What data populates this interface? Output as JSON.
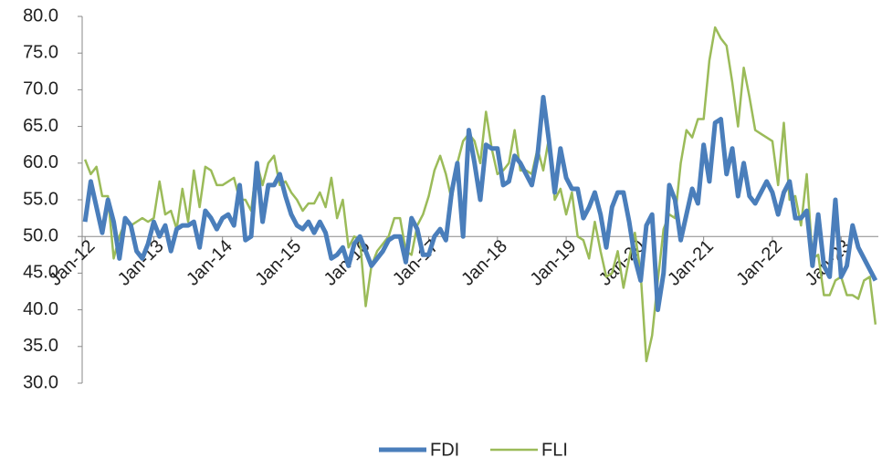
{
  "chart_data": {
    "type": "line",
    "categories": [
      "Jan-12",
      null,
      null,
      null,
      null,
      null,
      null,
      null,
      null,
      null,
      null,
      null,
      "Jan-13",
      null,
      null,
      null,
      null,
      null,
      null,
      null,
      null,
      null,
      null,
      null,
      "Jan-14",
      null,
      null,
      null,
      null,
      null,
      null,
      null,
      null,
      null,
      null,
      null,
      "Jan-15",
      null,
      null,
      null,
      null,
      null,
      null,
      null,
      null,
      null,
      null,
      null,
      "Jan-16",
      null,
      null,
      null,
      null,
      null,
      null,
      null,
      null,
      null,
      null,
      null,
      "Jan-17",
      null,
      null,
      null,
      null,
      null,
      null,
      null,
      null,
      null,
      null,
      null,
      "Jan-18",
      null,
      null,
      null,
      null,
      null,
      null,
      null,
      null,
      null,
      null,
      null,
      "Jan-19",
      null,
      null,
      null,
      null,
      null,
      null,
      null,
      null,
      null,
      null,
      null,
      "Jan-20",
      null,
      null,
      null,
      null,
      null,
      null,
      null,
      null,
      null,
      null,
      null,
      "Jan-21",
      null,
      null,
      null,
      null,
      null,
      null,
      null,
      null,
      null,
      null,
      null,
      "Jan-22",
      null,
      null,
      null,
      null,
      null,
      null,
      null,
      null,
      null,
      null,
      null,
      "Jan-23",
      null,
      null,
      null,
      null,
      null,
      null
    ],
    "series": [
      {
        "name": "FDI",
        "color": "#4a7ebb",
        "values": [
          52,
          57.5,
          54,
          50.5,
          55,
          52,
          47,
          52.5,
          51.5,
          48,
          47,
          49,
          52,
          50,
          51.5,
          48,
          51,
          51.5,
          51.5,
          52,
          48.5,
          53.5,
          52.5,
          51,
          52.5,
          53,
          51.5,
          57,
          49.5,
          50,
          60,
          52,
          57,
          57,
          58.5,
          55.5,
          53,
          51.5,
          51,
          52,
          50.5,
          52,
          50.5,
          47,
          47.5,
          48.5,
          46,
          49,
          50,
          48,
          46,
          47,
          48,
          49.5,
          50,
          50,
          46.5,
          52.5,
          51,
          47.5,
          47.5,
          50,
          51,
          49.5,
          56,
          60,
          50,
          64.5,
          60,
          55,
          62.5,
          62,
          62,
          57,
          57.5,
          61,
          60,
          58.5,
          57,
          61,
          69,
          63,
          56,
          62,
          58,
          56.5,
          56.5,
          52.5,
          54,
          56,
          53,
          48.5,
          54,
          56,
          56,
          52,
          47,
          44,
          51.5,
          53,
          40,
          45,
          57,
          55,
          49.5,
          53,
          56.5,
          54.5,
          62.5,
          57.5,
          65.5,
          66,
          58.5,
          62,
          55.5,
          60,
          55.5,
          54.5,
          56,
          57.5,
          56,
          53,
          56,
          57.5,
          52.5,
          52.5,
          53.5,
          46,
          53,
          46,
          44.5,
          55,
          44.5,
          46,
          51.5,
          48.5,
          47,
          45.5,
          44
        ]
      },
      {
        "name": "FLI",
        "color": "#9bbb59",
        "values": [
          60.5,
          58.5,
          59.5,
          55.5,
          55.5,
          47,
          50,
          52,
          51.5,
          52,
          52.5,
          52,
          52.5,
          57.5,
          53,
          53.5,
          51,
          56.5,
          52,
          59,
          54,
          59.5,
          59,
          57,
          57,
          57.5,
          58,
          55,
          55,
          53.5,
          60,
          57,
          60,
          61,
          57,
          57.5,
          56,
          55,
          53.5,
          54.5,
          54.5,
          56,
          54,
          58,
          52.5,
          55,
          48.5,
          50,
          49.5,
          40.5,
          46,
          48,
          49,
          50,
          52.5,
          52.5,
          48,
          47.5,
          51.5,
          53,
          55.5,
          59,
          61,
          58.5,
          55,
          60,
          63,
          64,
          63,
          60,
          67,
          62,
          58.5,
          59,
          60,
          64.5,
          59,
          59,
          58.5,
          62,
          59,
          63.5,
          55,
          56.5,
          53,
          56,
          50,
          49.5,
          47,
          52,
          48,
          44.5,
          45,
          48,
          43,
          47,
          50.5,
          45,
          33,
          36.5,
          44,
          51,
          53,
          52.5,
          60,
          64.5,
          63.5,
          66,
          66,
          74,
          78.5,
          77,
          76,
          71,
          65,
          73,
          69,
          64.5,
          64,
          63.5,
          63,
          57,
          65.5,
          55,
          55.5,
          51.5,
          58.5,
          47,
          47.5,
          42,
          42,
          44,
          44.5,
          42,
          42,
          41.5,
          44,
          44.5,
          38
        ]
      }
    ],
    "ylim": [
      30,
      80
    ],
    "yticks": [
      {
        "value": 30,
        "label": "30.0"
      },
      {
        "value": 35,
        "label": "35.0"
      },
      {
        "value": 40,
        "label": "40.0"
      },
      {
        "value": 45,
        "label": "45.0"
      },
      {
        "value": 50,
        "label": "50.0"
      },
      {
        "value": 55,
        "label": "55.0"
      },
      {
        "value": 60,
        "label": "60.0"
      },
      {
        "value": 65,
        "label": "65.0"
      },
      {
        "value": 70,
        "label": "70.0"
      },
      {
        "value": 75,
        "label": "75.0"
      },
      {
        "value": 80,
        "label": "80.0"
      }
    ],
    "x_axis_crosses": 50,
    "legend": "bottom"
  }
}
